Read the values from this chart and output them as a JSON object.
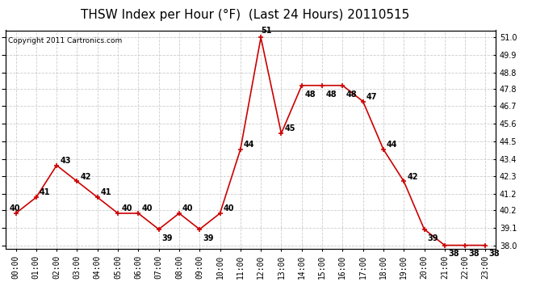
{
  "title": "THSW Index per Hour (°F)  (Last 24 Hours) 20110515",
  "copyright": "Copyright 2011 Cartronics.com",
  "hours": [
    0,
    1,
    2,
    3,
    4,
    5,
    6,
    7,
    8,
    9,
    10,
    11,
    12,
    13,
    14,
    15,
    16,
    17,
    18,
    19,
    20,
    21,
    22,
    23
  ],
  "values": [
    40,
    41,
    43,
    42,
    41,
    40,
    40,
    39,
    40,
    39,
    40,
    44,
    51,
    45,
    48,
    48,
    48,
    47,
    44,
    42,
    39,
    38,
    38,
    38
  ],
  "x_labels": [
    "00:00",
    "01:00",
    "02:00",
    "03:00",
    "04:00",
    "05:00",
    "06:00",
    "07:00",
    "08:00",
    "09:00",
    "10:00",
    "11:00",
    "12:00",
    "13:00",
    "14:00",
    "15:00",
    "16:00",
    "17:00",
    "18:00",
    "19:00",
    "20:00",
    "21:00",
    "22:00",
    "23:00"
  ],
  "y_ticks": [
    38.0,
    39.1,
    40.2,
    41.2,
    42.3,
    43.4,
    44.5,
    45.6,
    46.7,
    47.8,
    48.8,
    49.9,
    51.0
  ],
  "ylim_min": 37.8,
  "ylim_max": 51.45,
  "line_color": "#cc0000",
  "marker_color": "#cc0000",
  "grid_color": "#cccccc",
  "bg_color": "#ffffff",
  "title_fontsize": 11,
  "label_fontsize": 7,
  "annotation_fontsize": 7,
  "copyright_fontsize": 6.5
}
